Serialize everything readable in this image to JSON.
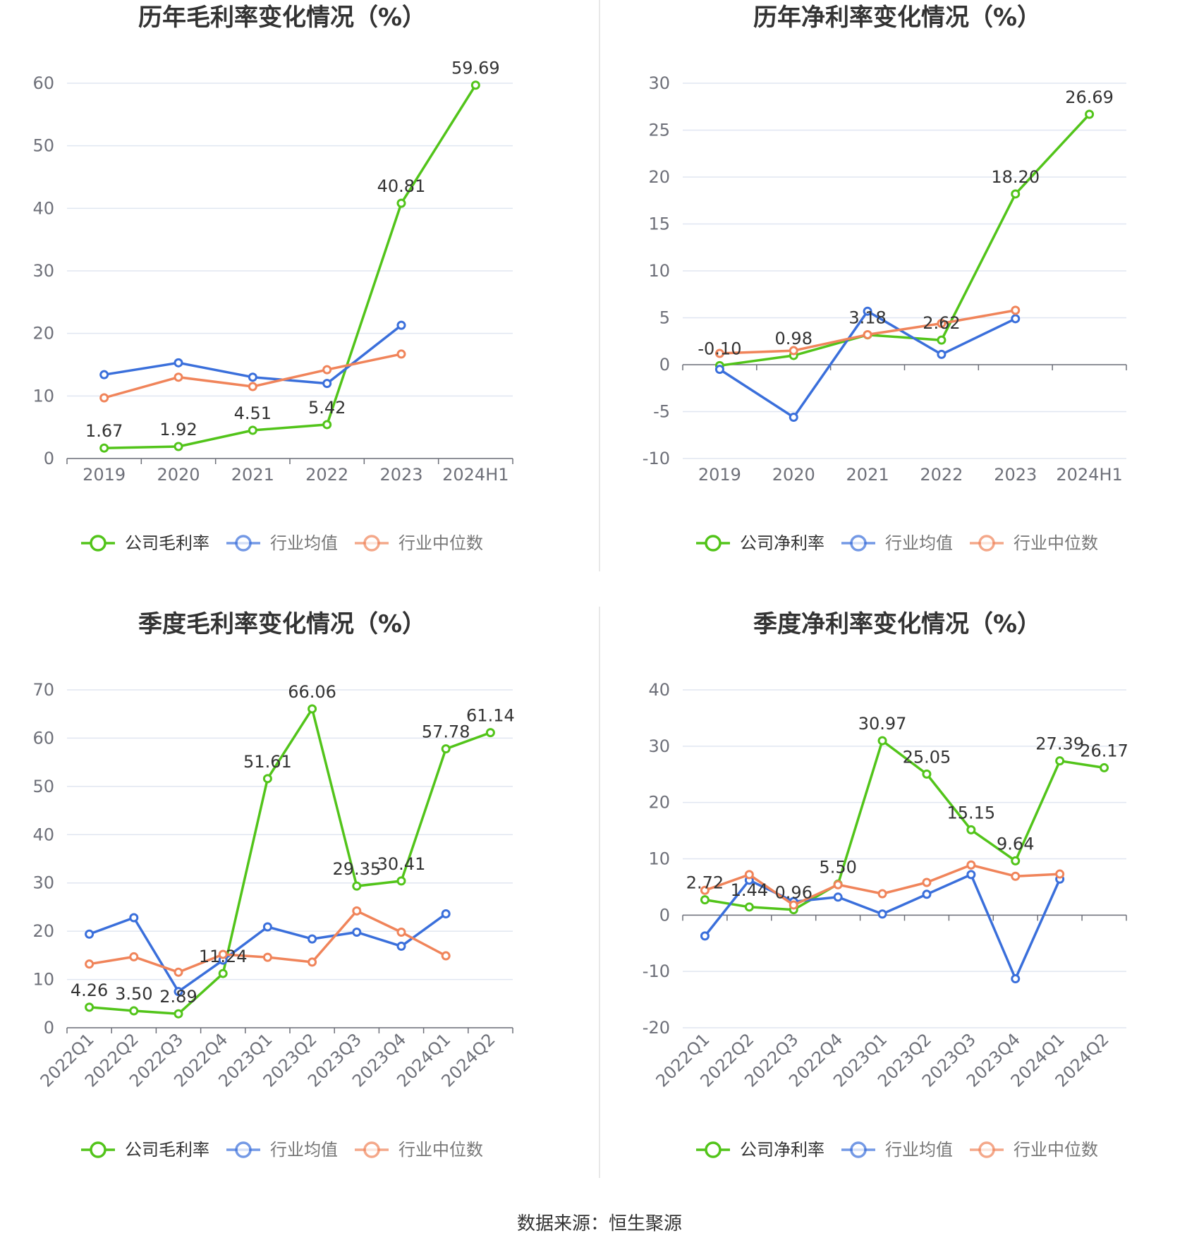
{
  "source": "数据来源：恒生聚源",
  "colors": {
    "company": "#52c41a",
    "avg": "#3a6fdb",
    "median": "#f0845a",
    "grid": "#e0e6f1",
    "axis": "#6e7079"
  },
  "chart_data": [
    {
      "type": "line",
      "title": "历年毛利率变化情况（%）",
      "categories": [
        "2019",
        "2020",
        "2021",
        "2022",
        "2023",
        "2024H1"
      ],
      "ylim": [
        0,
        60
      ],
      "yticks": [
        "0",
        "10",
        "20",
        "30",
        "40",
        "50",
        "60"
      ],
      "rotated_x": false,
      "series": [
        {
          "name": "公司毛利率",
          "values": [
            1.67,
            1.92,
            4.51,
            5.42,
            40.81,
            59.69
          ],
          "labels": [
            "1.67",
            "1.92",
            "4.51",
            "5.42",
            "40.81",
            "59.69"
          ]
        },
        {
          "name": "行业均值",
          "values": [
            13.4,
            15.3,
            13.0,
            12.0,
            21.3,
            null
          ]
        },
        {
          "name": "行业中位数",
          "values": [
            9.7,
            13.0,
            11.5,
            14.2,
            16.7,
            null
          ]
        }
      ],
      "legend": "bottom"
    },
    {
      "type": "line",
      "title": "历年净利率变化情况（%）",
      "categories": [
        "2019",
        "2020",
        "2021",
        "2022",
        "2023",
        "2024H1"
      ],
      "ylim": [
        -10,
        30
      ],
      "yticks": [
        "-10",
        "-5",
        "0",
        "5",
        "10",
        "15",
        "20",
        "25",
        "30"
      ],
      "rotated_x": false,
      "series": [
        {
          "name": "公司净利率",
          "values": [
            -0.1,
            0.98,
            3.18,
            2.62,
            18.2,
            26.69
          ],
          "labels": [
            "-0.10",
            "0.98",
            "3.18",
            "2.62",
            "18.20",
            "26.69"
          ]
        },
        {
          "name": "行业均值",
          "values": [
            -0.5,
            -5.6,
            5.7,
            1.1,
            4.9,
            null
          ]
        },
        {
          "name": "行业中位数",
          "values": [
            1.2,
            1.5,
            3.2,
            4.4,
            5.8,
            null
          ]
        }
      ],
      "legend": "bottom"
    },
    {
      "type": "line",
      "title": "季度毛利率变化情况（%）",
      "categories": [
        "2022Q1",
        "2022Q2",
        "2022Q3",
        "2022Q4",
        "2023Q1",
        "2023Q2",
        "2023Q3",
        "2023Q4",
        "2024Q1",
        "2024Q2"
      ],
      "ylim": [
        0,
        70
      ],
      "yticks": [
        "0",
        "10",
        "20",
        "30",
        "40",
        "50",
        "60",
        "70"
      ],
      "rotated_x": true,
      "series": [
        {
          "name": "公司毛利率",
          "values": [
            4.26,
            3.5,
            2.89,
            11.24,
            51.61,
            66.06,
            29.35,
            30.41,
            57.78,
            61.14
          ],
          "labels": [
            "4.26",
            "3.50",
            "2.89",
            "11.24",
            "51.61",
            "66.06",
            "29.35",
            "30.41",
            "57.78",
            "61.14"
          ]
        },
        {
          "name": "行业均值",
          "values": [
            19.4,
            22.8,
            7.5,
            14.0,
            20.9,
            18.4,
            19.8,
            16.9,
            23.6,
            null
          ]
        },
        {
          "name": "行业中位数",
          "values": [
            13.2,
            14.7,
            11.5,
            15.2,
            14.6,
            13.6,
            24.2,
            19.8,
            14.9,
            null
          ]
        }
      ],
      "legend": "bottom"
    },
    {
      "type": "line",
      "title": "季度净利率变化情况（%）",
      "categories": [
        "2022Q1",
        "2022Q2",
        "2022Q3",
        "2022Q4",
        "2023Q1",
        "2023Q2",
        "2023Q3",
        "2023Q4",
        "2024Q1",
        "2024Q2"
      ],
      "ylim": [
        -20,
        40
      ],
      "yticks": [
        "-20",
        "-10",
        "0",
        "10",
        "20",
        "30",
        "40"
      ],
      "rotated_x": true,
      "series": [
        {
          "name": "公司净利率",
          "values": [
            2.72,
            1.44,
            0.96,
            5.5,
            30.97,
            25.05,
            15.15,
            9.64,
            27.39,
            26.17
          ],
          "labels": [
            "2.72",
            "1.44",
            "0.96",
            "5.50",
            "30.97",
            "25.05",
            "15.15",
            "9.64",
            "27.39",
            "26.17"
          ]
        },
        {
          "name": "行业均值",
          "values": [
            -3.7,
            6.2,
            2.4,
            3.2,
            0.2,
            3.7,
            7.2,
            -11.3,
            6.4,
            null
          ]
        },
        {
          "name": "行业中位数",
          "values": [
            4.4,
            7.2,
            1.8,
            5.4,
            3.8,
            5.8,
            8.9,
            6.9,
            7.3,
            null
          ]
        }
      ],
      "legend": "bottom"
    }
  ]
}
